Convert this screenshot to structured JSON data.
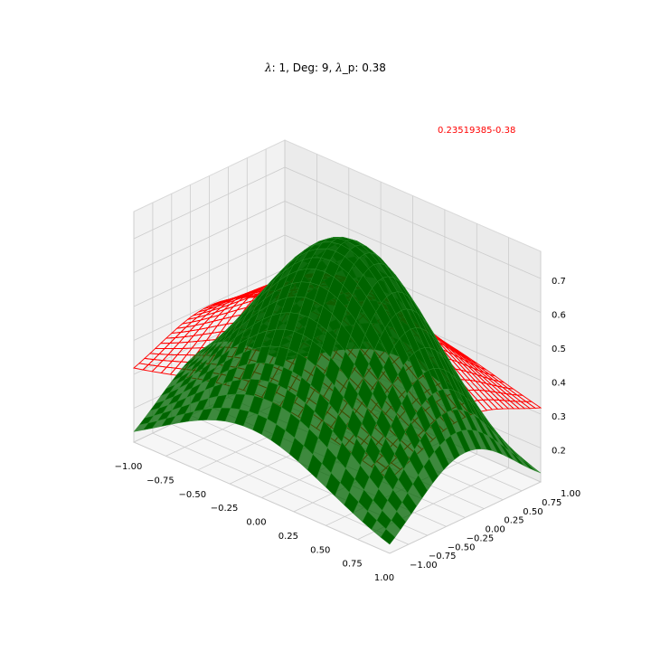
{
  "chart_data": {
    "type": "surface3d",
    "title_parts": {
      "lam_symbol": "λ",
      "lam_value": ": 1, Deg: 9, ",
      "lamp_symbol": "λ",
      "lamp_value": "_p: 0.38"
    },
    "annotation": {
      "text": "0.23519385-0.38",
      "color": "#ff0000"
    },
    "x_ticks": [
      "−1.00",
      "−0.75",
      "−0.50",
      "−0.25",
      "0.00",
      "0.25",
      "0.50",
      "0.75",
      "1.00"
    ],
    "y_ticks": [
      "−1.00",
      "−0.75",
      "−0.50",
      "−0.25",
      "0.00",
      "0.25",
      "0.50",
      "0.75",
      "1.00"
    ],
    "z_ticks": [
      "0.2",
      "0.3",
      "0.4",
      "0.5",
      "0.6",
      "0.7"
    ],
    "xlim": [
      -1,
      1
    ],
    "ylim": [
      -1,
      1
    ],
    "zlim": [
      0.1,
      0.78
    ],
    "grid": true,
    "series": [
      {
        "style": "wireframe",
        "color": "#ff0000",
        "peak": 0.63,
        "corner_min": 0.28
      },
      {
        "style": "surface",
        "color": "#006400",
        "peak": 0.76,
        "corner_min": 0.05
      }
    ]
  }
}
